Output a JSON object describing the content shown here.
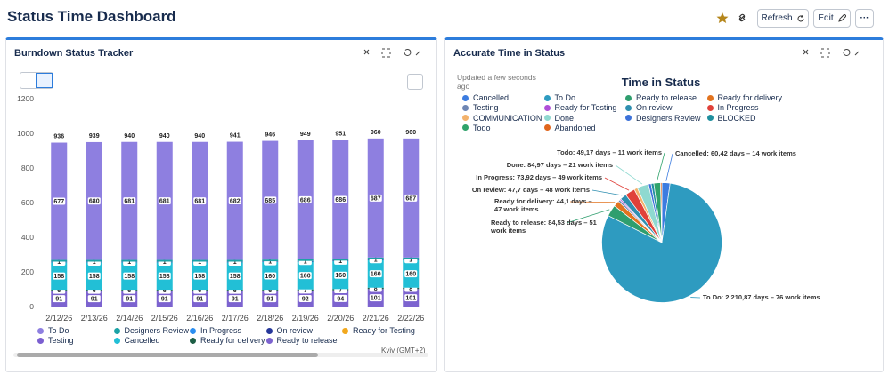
{
  "header": {
    "title": "Status Time Dashboard",
    "buttons": [
      "Refresh",
      "Edit"
    ]
  },
  "chart_data": [
    {
      "type": "stacked-bar",
      "title": "Burndown Status Tracker",
      "footnote": "Kyiv (GMT+2)",
      "categories": [
        "2/12/26",
        "2/13/26",
        "2/14/26",
        "2/15/26",
        "2/16/26",
        "2/17/26",
        "2/18/26",
        "2/19/26",
        "2/20/26",
        "2/21/26",
        "2/22/26"
      ],
      "series": [
        {
          "name": "To Do",
          "color": "#8e7fe0",
          "values": [
            677,
            680,
            681,
            681,
            681,
            682,
            685,
            686,
            686,
            687,
            687
          ]
        },
        {
          "name": "Designers Review",
          "color": "#1ba2a6",
          "labeled": false,
          "values": [
            10,
            10,
            10,
            10,
            10,
            10,
            10,
            10,
            10,
            10,
            10
          ]
        },
        {
          "name": "In Progress",
          "color": "#2c8ef0",
          "values": [
            1,
            1,
            1,
            1,
            1,
            1,
            1,
            1,
            1,
            1,
            1
          ]
        },
        {
          "name": "On review",
          "color": "#26379a",
          "values": [
            3,
            3,
            3,
            3,
            3,
            3,
            3,
            3,
            3,
            3,
            3
          ]
        },
        {
          "name": "Ready for Testing",
          "color": "#f2a81d",
          "values": [
            null,
            null,
            null,
            null,
            null,
            null,
            null,
            null,
            null,
            null,
            null
          ]
        },
        {
          "name": "Testing",
          "color": "#7b5fd0",
          "values": [
            null,
            null,
            null,
            null,
            null,
            null,
            null,
            null,
            null,
            null,
            null
          ]
        },
        {
          "name": "Cancelled",
          "color": "#22bfd6",
          "values": [
            158,
            158,
            158,
            158,
            158,
            158,
            160,
            160,
            160,
            160,
            160
          ]
        },
        {
          "name": "Ready for delivery",
          "color": "#1d5e45",
          "values": [
            6,
            6,
            6,
            6,
            6,
            6,
            6,
            7,
            7,
            8,
            8
          ]
        },
        {
          "name": "Ready to release",
          "color": "#7c63cf",
          "values": [
            91,
            91,
            91,
            91,
            91,
            91,
            91,
            92,
            94,
            101,
            101
          ]
        }
      ],
      "totals": [
        936,
        939,
        940,
        940,
        940,
        941,
        946,
        949,
        951,
        960,
        960
      ],
      "ylim": [
        0,
        1200
      ],
      "yticks": [
        0,
        200,
        400,
        600,
        800,
        1000,
        1200
      ],
      "grid": false
    },
    {
      "type": "pie",
      "panel_title": "Accurate Time in Status",
      "title": "Time in Status",
      "subtitle": "Updated a few seconds ago",
      "categories": [
        "Cancelled",
        "To Do",
        "Ready to release",
        "Ready for delivery",
        "Testing",
        "Ready for Testing",
        "On review",
        "In Progress",
        "COMMUNICATION",
        "Done",
        "Designers Review",
        "BLOCKED",
        "Todo",
        "Abandoned"
      ],
      "values": [
        60.42,
        2210.87,
        84.53,
        44.1,
        15,
        10,
        47.7,
        73.92,
        25,
        84.97,
        20,
        20,
        49.17,
        10
      ],
      "value_labels": [
        "Cancelled: 60,42 days – 14 work items",
        "To Do: 2 210,87 days – 76 work items",
        "Ready to release: 84,53 days – 51 work items",
        "Ready for delivery: 44,1 days – 47 work items",
        null,
        null,
        "On review: 47,7 days – 48 work items",
        "In Progress: 73,92 days – 49 work items",
        null,
        "Done: 84,97 days – 21 work items",
        null,
        null,
        "Todo: 49,17 days – 11 work items",
        null
      ],
      "colors": [
        "#3c7ce0",
        "#2e9bc0",
        "#2f9e6e",
        "#e2731f",
        "#6f86b3",
        "#b04fd8",
        "#2f8fb0",
        "#e0413a",
        "#f3b26b",
        "#8fd9d0",
        "#3d72d9",
        "#1f8f9e",
        "#2fa36b",
        "#e0661d"
      ]
    }
  ]
}
